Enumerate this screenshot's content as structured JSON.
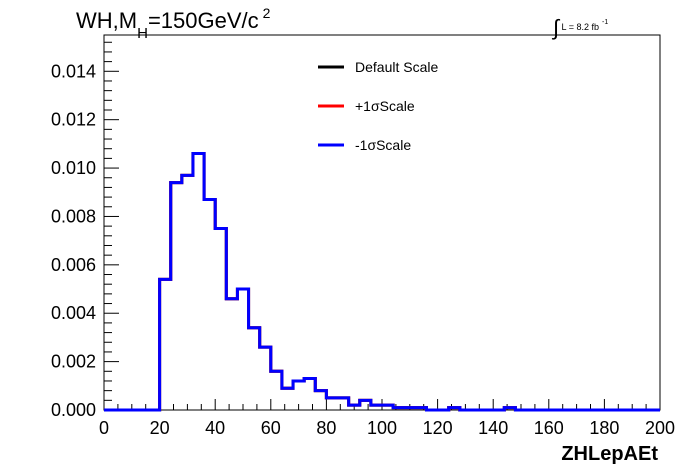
{
  "title": {
    "main": "WH,M",
    "sub": "H",
    "rest": "=150GeV/c",
    "sup": "2"
  },
  "lumi": {
    "integral": "∫",
    "text": "L = 8.2 fb",
    "sup": "-1"
  },
  "chart_data": {
    "type": "line",
    "title": "WH,M_H=150GeV/c^2",
    "xlabel": "ZHLepAEt",
    "ylabel": "",
    "xlim": [
      0,
      200
    ],
    "ylim": [
      0,
      0.0155
    ],
    "x_ticks": [
      "0",
      "20",
      "40",
      "60",
      "80",
      "100",
      "120",
      "140",
      "160",
      "180",
      "200"
    ],
    "y_ticks": [
      "0.000",
      "0.002",
      "0.004",
      "0.006",
      "0.008",
      "0.010",
      "0.012",
      "0.014"
    ],
    "bin_width": 4,
    "bin_low_edges": [
      0,
      4,
      8,
      12,
      16,
      20,
      24,
      28,
      32,
      36,
      40,
      44,
      48,
      52,
      56,
      60,
      64,
      68,
      72,
      76,
      80,
      84,
      88,
      92,
      96,
      100,
      104,
      108,
      112,
      116,
      120,
      124,
      128,
      132,
      136,
      140,
      144,
      148,
      152,
      156,
      160,
      164,
      168,
      172,
      176,
      180,
      184,
      188,
      192,
      196
    ],
    "series": [
      {
        "name": "Default Scale",
        "color": "#000000",
        "values": [
          0,
          0,
          0,
          0,
          0,
          0.0054,
          0.0094,
          0.0097,
          0.0106,
          0.0087,
          0.0075,
          0.0046,
          0.005,
          0.0034,
          0.0026,
          0.0016,
          0.0009,
          0.0012,
          0.0013,
          0.0008,
          0.0005,
          0.0005,
          0.0002,
          0.0004,
          0.0002,
          0.0002,
          0.0001,
          0.0001,
          0.0001,
          0.0,
          0.0,
          0.0001,
          0,
          0,
          0,
          0,
          0.0001,
          0,
          0,
          0,
          0,
          0,
          0,
          0,
          0,
          0,
          0,
          0,
          0,
          0
        ]
      },
      {
        "name": "+1σScale",
        "color": "#ff0000",
        "values": [
          0,
          0,
          0,
          0,
          0,
          0.0054,
          0.0094,
          0.0097,
          0.0106,
          0.0087,
          0.0075,
          0.0046,
          0.005,
          0.0034,
          0.0026,
          0.0016,
          0.0009,
          0.0012,
          0.0013,
          0.0008,
          0.0005,
          0.0005,
          0.0002,
          0.0004,
          0.0002,
          0.0002,
          0.0001,
          0.0001,
          0.0001,
          0.0,
          0.0,
          0.0001,
          0,
          0,
          0,
          0,
          0.0001,
          0,
          0,
          0,
          0,
          0,
          0,
          0,
          0,
          0,
          0,
          0,
          0,
          0
        ]
      },
      {
        "name": "-1σScale",
        "color": "#0000ff",
        "values": [
          0,
          0,
          0,
          0,
          0,
          0.0054,
          0.0094,
          0.0097,
          0.0106,
          0.0087,
          0.0075,
          0.0046,
          0.005,
          0.0034,
          0.0026,
          0.0016,
          0.0009,
          0.0012,
          0.0013,
          0.0008,
          0.0005,
          0.0005,
          0.0002,
          0.0004,
          0.0002,
          0.0002,
          0.0001,
          0.0001,
          0.0001,
          0.0,
          0.0,
          0.0001,
          0,
          0,
          0,
          0,
          0.0001,
          0,
          0,
          0,
          0,
          0,
          0,
          0,
          0,
          0,
          0,
          0,
          0,
          0
        ]
      }
    ]
  }
}
